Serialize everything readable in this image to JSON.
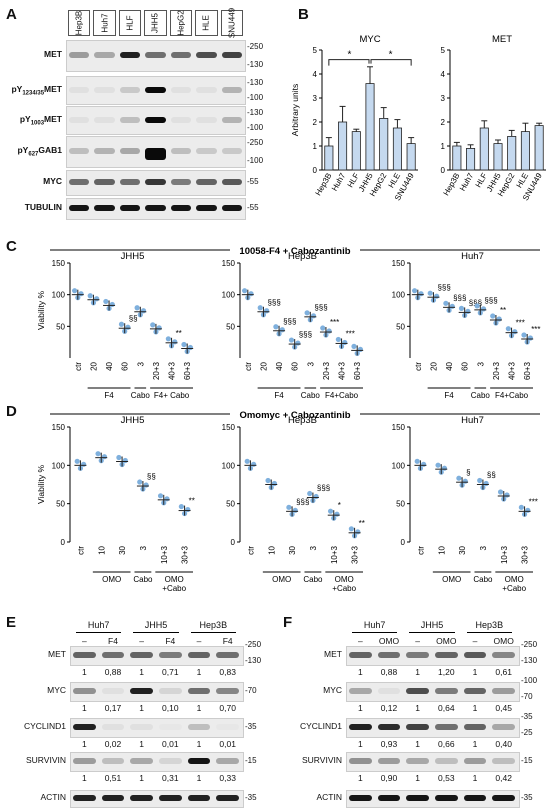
{
  "panel_letters": {
    "a": "A",
    "b": "B",
    "c": "C",
    "d": "D",
    "e": "E",
    "f": "F"
  },
  "panel_a": {
    "lanes": [
      "Hep3B",
      "Huh7",
      "HLF",
      "JHH5",
      "HepG2",
      "HLE",
      "SNU449"
    ],
    "rows": [
      {
        "label_main": "MET",
        "label_sub": "",
        "label_tail": "",
        "mw": [
          "-250",
          "-130"
        ]
      },
      {
        "label_main": "pY",
        "label_sub": "1234/35",
        "label_tail": "MET",
        "mw": [
          "-130",
          "-100"
        ]
      },
      {
        "label_main": "pY",
        "label_sub": "1003",
        "label_tail": "MET",
        "mw": [
          "-130",
          "-100"
        ]
      },
      {
        "label_main": "pY",
        "label_sub": "627",
        "label_tail": "GAB1",
        "mw": [
          "-250",
          "-100"
        ]
      },
      {
        "label_main": "MYC",
        "label_sub": "",
        "label_tail": "",
        "mw": [
          "-55"
        ]
      },
      {
        "label_main": "TUBULIN",
        "label_sub": "",
        "label_tail": "",
        "mw": [
          "-55"
        ]
      }
    ]
  },
  "panel_b": {
    "ylabel": "Arbitrary units",
    "yticks": [
      "0",
      "1",
      "2",
      "3",
      "4",
      "5"
    ],
    "sig": [
      "*",
      "*"
    ]
  },
  "chart_data": [
    {
      "type": "bar",
      "title": "MYC",
      "ylabel": "Arbitrary units",
      "ylim": [
        0,
        5
      ],
      "categories": [
        "Hep3B",
        "Huh7",
        "HLF",
        "JHH5",
        "HepG2",
        "HLE",
        "SNU449"
      ],
      "values": [
        1.0,
        2.0,
        1.6,
        3.6,
        2.15,
        1.75,
        1.1
      ],
      "errors": [
        0.35,
        0.65,
        0.1,
        0.7,
        0.45,
        0.35,
        0.25
      ]
    },
    {
      "type": "bar",
      "title": "MET",
      "ylim": [
        0,
        5
      ],
      "categories": [
        "Hep3B",
        "Huh7",
        "HLF",
        "JHH5",
        "HepG2",
        "HLE",
        "SNU449"
      ],
      "values": [
        1.0,
        0.9,
        1.75,
        1.1,
        1.4,
        1.6,
        1.85
      ],
      "errors": [
        0.15,
        0.15,
        0.3,
        0.15,
        0.25,
        0.35,
        0.1
      ]
    },
    {
      "type": "scatter",
      "title": "JHH5",
      "ylabel": "Viability %",
      "ylim": [
        0,
        100
      ],
      "x": [
        "ctr",
        "20",
        "40",
        "60",
        "3",
        "20+3",
        "40+3",
        "60+3"
      ],
      "means": [
        100,
        92,
        83,
        47,
        73,
        46,
        24,
        15
      ],
      "marks": [
        "",
        "",
        "",
        "§§",
        "",
        "",
        "**",
        ""
      ],
      "groups": [
        "F4",
        "Cabo",
        "F4+ Cabo"
      ]
    },
    {
      "type": "scatter",
      "title": "Hep3B",
      "ylim": [
        0,
        100
      ],
      "x": [
        "ctr",
        "20",
        "40",
        "60",
        "3",
        "20+3",
        "40+3",
        "60+3"
      ],
      "means": [
        100,
        73,
        43,
        22,
        65,
        41,
        23,
        12
      ],
      "marks": [
        "",
        "§§§",
        "§§§",
        "§§§",
        "§§§",
        "***",
        "***",
        ""
      ],
      "groups": [
        "F4",
        "Cabo",
        "F4+Cabo"
      ]
    },
    {
      "type": "scatter",
      "title": "Huh7",
      "ylim": [
        0,
        100
      ],
      "x": [
        "ctr",
        "20",
        "40",
        "60",
        "3",
        "20+3",
        "40+3",
        "60+3"
      ],
      "means": [
        100,
        96,
        80,
        72,
        76,
        60,
        40,
        30
      ],
      "marks": [
        "",
        "§§§",
        "§§§",
        "§§§",
        "§§§",
        "**",
        "***",
        "***"
      ],
      "groups": [
        "F4",
        "Cabo",
        "F4+Cabo"
      ]
    },
    {
      "type": "scatter",
      "title": "JHH5",
      "ylabel": "Viability %",
      "ylim": [
        0,
        150
      ],
      "x": [
        "ctr",
        "10",
        "30",
        "3",
        "10+3",
        "30+3"
      ],
      "means": [
        100,
        110,
        105,
        73,
        55,
        41
      ],
      "marks": [
        "",
        "",
        "",
        "§§",
        "",
        "**"
      ],
      "groups": [
        "OMO",
        "Cabo",
        "OMO +Cabo"
      ]
    },
    {
      "type": "scatter",
      "title": "Hep3B",
      "ylim": [
        0,
        150
      ],
      "x": [
        "ctr",
        "10",
        "30",
        "3",
        "10+3",
        "30+3"
      ],
      "means": [
        100,
        75,
        40,
        58,
        35,
        12
      ],
      "marks": [
        "",
        "",
        "§§§",
        "§§§",
        "*",
        "**"
      ],
      "groups": [
        "OMO",
        "Cabo",
        "OMO +Cabo"
      ]
    },
    {
      "type": "scatter",
      "title": "Huh7",
      "ylim": [
        0,
        150
      ],
      "x": [
        "ctr",
        "10",
        "30",
        "3",
        "10+3",
        "30+3"
      ],
      "means": [
        100,
        95,
        78,
        75,
        60,
        40
      ],
      "marks": [
        "",
        "",
        "§",
        "§§",
        "",
        "***"
      ],
      "groups": [
        "OMO",
        "Cabo",
        "OMO +Cabo"
      ]
    }
  ],
  "panel_c": {
    "header": "10058-F4 + Cabozantinib",
    "yticks": [
      "50",
      "100",
      "150"
    ],
    "ytick0": "0"
  },
  "panel_d": {
    "header": "Omomyc + Cabozantinib",
    "yticks": [
      "0",
      "50",
      "100",
      "150"
    ]
  },
  "panel_e": {
    "cells": [
      "Huh7",
      "JHH5",
      "Hep3B"
    ],
    "treat": [
      "–",
      "F4",
      "–",
      "F4",
      "–",
      "F4"
    ],
    "rows": [
      {
        "label": "MET",
        "mw": [
          "-250",
          "-130"
        ],
        "quant": [
          "1",
          "0,88",
          "1",
          "0,71",
          "1",
          "0,83"
        ]
      },
      {
        "label": "MYC",
        "mw": [
          "-70"
        ],
        "quant": [
          "1",
          "0,17",
          "1",
          "0,10",
          "1",
          "0,70"
        ]
      },
      {
        "label": "CYCLIND1",
        "mw": [
          "-35"
        ],
        "quant": [
          "1",
          "0,02",
          "1",
          "0,01",
          "1",
          "0,01"
        ]
      },
      {
        "label": "SURVIVIN",
        "mw": [
          "-15"
        ],
        "quant": [
          "1",
          "0,51",
          "1",
          "0,31",
          "1",
          "0,33"
        ]
      },
      {
        "label": "ACTIN",
        "mw": [
          "-35"
        ],
        "quant": []
      }
    ]
  },
  "panel_f": {
    "cells": [
      "Huh7",
      "JHH5",
      "Hep3B"
    ],
    "treat": [
      "–",
      "OMO",
      "–",
      "OMO",
      "–",
      "OMO"
    ],
    "rows": [
      {
        "label": "MET",
        "mw": [
          "-250",
          "-130"
        ],
        "quant": [
          "1",
          "0,88",
          "1",
          "1,20",
          "1",
          "0,61"
        ]
      },
      {
        "label": "MYC",
        "mw": [
          "-100",
          "-70"
        ],
        "quant": [
          "1",
          "0,12",
          "1",
          "0,64",
          "1",
          "0,45"
        ]
      },
      {
        "label": "CYCLIND1",
        "mw": [
          "-35",
          "-25"
        ],
        "quant": [
          "1",
          "0,93",
          "1",
          "0,66",
          "1",
          "0,40"
        ]
      },
      {
        "label": "SURVIVIN",
        "mw": [
          "-15"
        ],
        "quant": [
          "1",
          "0,90",
          "1",
          "0,53",
          "1",
          "0,42"
        ]
      },
      {
        "label": "ACTIN",
        "mw": [
          "-35"
        ],
        "quant": []
      }
    ]
  }
}
